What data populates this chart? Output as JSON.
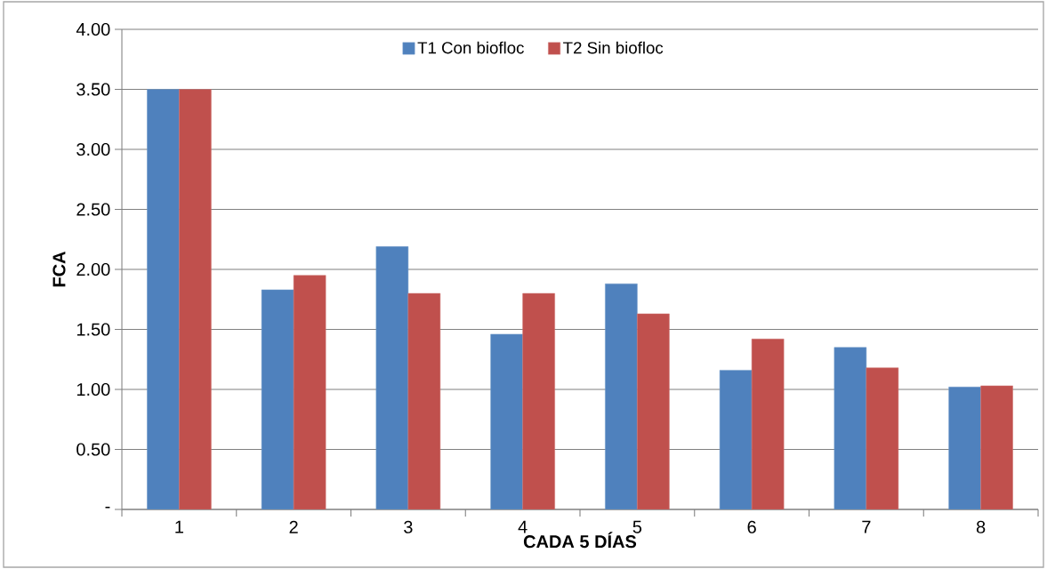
{
  "chart_data": {
    "type": "bar",
    "xlabel": "CADA 5 DÍAS",
    "ylabel": "FCA",
    "categories": [
      "1",
      "2",
      "3",
      "4",
      "5",
      "6",
      "7",
      "8"
    ],
    "series": [
      {
        "name": "T1 Con biofloc",
        "color": "#4f81bd",
        "values": [
          3.5,
          1.83,
          2.19,
          1.46,
          1.88,
          1.16,
          1.35,
          1.02
        ]
      },
      {
        "name": "T2 Sin biofloc",
        "color": "#c0504d",
        "values": [
          3.5,
          1.95,
          1.8,
          1.8,
          1.63,
          1.42,
          1.18,
          1.03
        ]
      }
    ],
    "ylim": [
      0,
      4
    ],
    "yticks": [
      {
        "value": 0,
        "label": "-"
      },
      {
        "value": 0.5,
        "label": "0.50"
      },
      {
        "value": 1,
        "label": "1.00"
      },
      {
        "value": 1.5,
        "label": "1.50"
      },
      {
        "value": 2,
        "label": "2.00"
      },
      {
        "value": 2.5,
        "label": "2.50"
      },
      {
        "value": 3,
        "label": "3.00"
      },
      {
        "value": 3.5,
        "label": "3.50"
      },
      {
        "value": 4,
        "label": "4.00"
      }
    ],
    "grid": "y",
    "legend": "top"
  }
}
